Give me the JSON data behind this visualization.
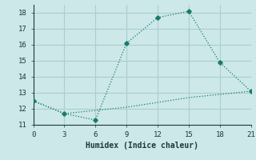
{
  "line1_x": [
    0,
    3,
    6,
    9,
    12,
    15,
    18,
    21
  ],
  "line1_y": [
    12.5,
    11.7,
    11.3,
    16.1,
    17.7,
    18.1,
    14.9,
    13.1
  ],
  "line2_x": [
    0,
    3,
    6,
    9,
    12,
    15,
    18,
    21
  ],
  "line2_y": [
    12.5,
    11.7,
    11.9,
    12.1,
    12.4,
    12.7,
    12.9,
    13.1
  ],
  "line_color": "#1a7a6e",
  "bg_color": "#cce8e8",
  "grid_color": "#aacece",
  "xlabel": "Humidex (Indice chaleur)",
  "xlim": [
    0,
    21
  ],
  "ylim": [
    11,
    18.5
  ],
  "xticks": [
    0,
    3,
    6,
    9,
    12,
    15,
    18,
    21
  ],
  "yticks": [
    11,
    12,
    13,
    14,
    15,
    16,
    17,
    18
  ]
}
